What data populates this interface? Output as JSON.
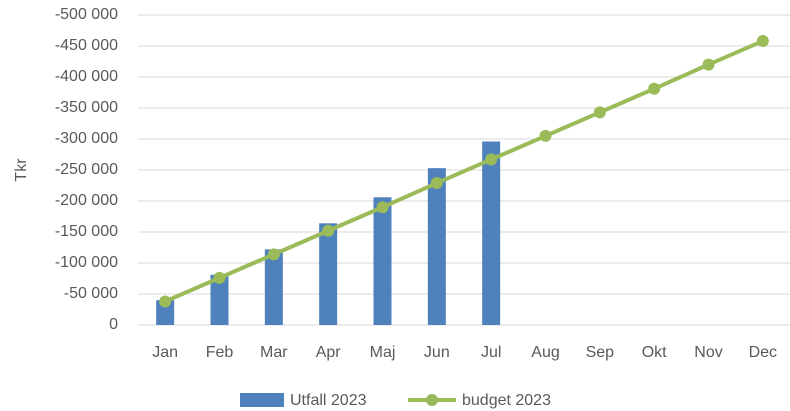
{
  "chart_data": {
    "type": "bar-line",
    "y_label": "Tkr",
    "categories": [
      "Jan",
      "Feb",
      "Mar",
      "Apr",
      "Maj",
      "Jun",
      "Jul",
      "Aug",
      "Sep",
      "Okt",
      "Nov",
      "Dec"
    ],
    "series": [
      {
        "name": "Utfall 2023",
        "type": "bar",
        "color": "#4f81bd",
        "values": [
          -40000,
          -81000,
          -122000,
          -164000,
          -206000,
          -253000,
          -296000,
          null,
          null,
          null,
          null,
          null
        ]
      },
      {
        "name": "budget 2023",
        "type": "line",
        "color": "#9bbb59",
        "values": [
          -38000,
          -76000,
          -114000,
          -152000,
          -190000,
          -229000,
          -267000,
          -305000,
          -343000,
          -381000,
          -420000,
          -458000
        ]
      }
    ],
    "ylim": [
      0,
      -500000
    ],
    "yticks": [
      0,
      {
        "value": -50000,
        "label": "-50 000"
      },
      {
        "value": -100000,
        "label": "-100 000"
      },
      {
        "value": -150000,
        "label": "-150 000"
      },
      {
        "value": -200000,
        "label": "-200 000"
      },
      {
        "value": -250000,
        "label": "-250 000"
      },
      {
        "value": -300000,
        "label": "-300 000"
      },
      {
        "value": -350000,
        "label": "-350 000"
      },
      {
        "value": -400000,
        "label": "-400 000"
      },
      {
        "value": -450000,
        "label": "-450 000"
      },
      {
        "value": -500000,
        "label": "-500 000"
      }
    ],
    "grid": true,
    "legend": "bottom"
  }
}
